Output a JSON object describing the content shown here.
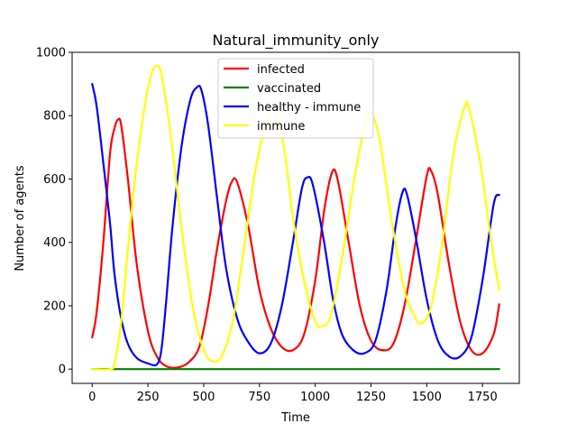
{
  "chart_data": {
    "type": "line",
    "title": "Natural_immunity_only",
    "xlabel": "Time",
    "ylabel": "Number of agents",
    "xlim": [
      -90,
      1915
    ],
    "ylim": [
      -45,
      1000
    ],
    "xticks": [
      0,
      250,
      500,
      750,
      1000,
      1250,
      1500,
      1750
    ],
    "yticks": [
      0,
      200,
      400,
      600,
      800,
      1000
    ],
    "grid": false,
    "legend_position": "top-center",
    "series": [
      {
        "name": "infected",
        "color": "#ff0000",
        "points": [
          [
            0,
            100
          ],
          [
            20,
            180
          ],
          [
            50,
            400
          ],
          [
            80,
            680
          ],
          [
            100,
            760
          ],
          [
            115,
            787
          ],
          [
            130,
            770
          ],
          [
            160,
            600
          ],
          [
            200,
            330
          ],
          [
            250,
            120
          ],
          [
            290,
            40
          ],
          [
            330,
            10
          ],
          [
            380,
            5
          ],
          [
            430,
            20
          ],
          [
            480,
            70
          ],
          [
            520,
            200
          ],
          [
            560,
            380
          ],
          [
            600,
            530
          ],
          [
            625,
            590
          ],
          [
            650,
            590
          ],
          [
            700,
            450
          ],
          [
            750,
            250
          ],
          [
            800,
            130
          ],
          [
            850,
            70
          ],
          [
            900,
            60
          ],
          [
            950,
            110
          ],
          [
            1000,
            280
          ],
          [
            1040,
            500
          ],
          [
            1075,
            620
          ],
          [
            1100,
            600
          ],
          [
            1150,
            400
          ],
          [
            1200,
            200
          ],
          [
            1250,
            90
          ],
          [
            1300,
            60
          ],
          [
            1350,
            80
          ],
          [
            1400,
            200
          ],
          [
            1450,
            400
          ],
          [
            1500,
            610
          ],
          [
            1520,
            625
          ],
          [
            1550,
            550
          ],
          [
            1600,
            330
          ],
          [
            1650,
            150
          ],
          [
            1700,
            60
          ],
          [
            1750,
            50
          ],
          [
            1800,
            110
          ],
          [
            1825,
            205
          ]
        ]
      },
      {
        "name": "vaccinated",
        "color": "#008000",
        "points": [
          [
            0,
            0
          ],
          [
            1825,
            0
          ]
        ]
      },
      {
        "name": "healthy - immune",
        "color": "#0000ff",
        "points": [
          [
            0,
            900
          ],
          [
            20,
            830
          ],
          [
            50,
            650
          ],
          [
            80,
            460
          ],
          [
            100,
            300
          ],
          [
            130,
            160
          ],
          [
            160,
            80
          ],
          [
            200,
            35
          ],
          [
            250,
            18
          ],
          [
            290,
            15
          ],
          [
            310,
            60
          ],
          [
            330,
            200
          ],
          [
            360,
            450
          ],
          [
            400,
            700
          ],
          [
            440,
            850
          ],
          [
            470,
            890
          ],
          [
            490,
            880
          ],
          [
            520,
            770
          ],
          [
            560,
            540
          ],
          [
            600,
            320
          ],
          [
            650,
            160
          ],
          [
            700,
            85
          ],
          [
            750,
            50
          ],
          [
            800,
            80
          ],
          [
            850,
            200
          ],
          [
            900,
            400
          ],
          [
            940,
            570
          ],
          [
            965,
            605
          ],
          [
            990,
            580
          ],
          [
            1040,
            400
          ],
          [
            1080,
            220
          ],
          [
            1120,
            110
          ],
          [
            1170,
            60
          ],
          [
            1220,
            50
          ],
          [
            1270,
            90
          ],
          [
            1320,
            250
          ],
          [
            1360,
            450
          ],
          [
            1390,
            555
          ],
          [
            1410,
            555
          ],
          [
            1450,
            420
          ],
          [
            1500,
            220
          ],
          [
            1550,
            90
          ],
          [
            1600,
            40
          ],
          [
            1650,
            40
          ],
          [
            1700,
            100
          ],
          [
            1750,
            280
          ],
          [
            1800,
            520
          ],
          [
            1825,
            550
          ]
        ]
      },
      {
        "name": "immune",
        "color": "#ffff00",
        "points": [
          [
            0,
            0
          ],
          [
            80,
            0
          ],
          [
            100,
            20
          ],
          [
            130,
            150
          ],
          [
            160,
            380
          ],
          [
            200,
            650
          ],
          [
            240,
            850
          ],
          [
            270,
            940
          ],
          [
            290,
            957
          ],
          [
            310,
            930
          ],
          [
            350,
            750
          ],
          [
            400,
            450
          ],
          [
            450,
            200
          ],
          [
            500,
            60
          ],
          [
            540,
            25
          ],
          [
            580,
            40
          ],
          [
            630,
            150
          ],
          [
            680,
            380
          ],
          [
            730,
            620
          ],
          [
            780,
            780
          ],
          [
            820,
            810
          ],
          [
            860,
            700
          ],
          [
            900,
            480
          ],
          [
            950,
            280
          ],
          [
            1000,
            150
          ],
          [
            1030,
            135
          ],
          [
            1070,
            170
          ],
          [
            1120,
            350
          ],
          [
            1180,
            620
          ],
          [
            1230,
            790
          ],
          [
            1250,
            810
          ],
          [
            1290,
            720
          ],
          [
            1340,
            480
          ],
          [
            1400,
            250
          ],
          [
            1450,
            160
          ],
          [
            1480,
            145
          ],
          [
            1520,
            200
          ],
          [
            1570,
            400
          ],
          [
            1620,
            680
          ],
          [
            1670,
            828
          ],
          [
            1690,
            820
          ],
          [
            1740,
            650
          ],
          [
            1790,
            400
          ],
          [
            1825,
            250
          ]
        ]
      }
    ]
  }
}
